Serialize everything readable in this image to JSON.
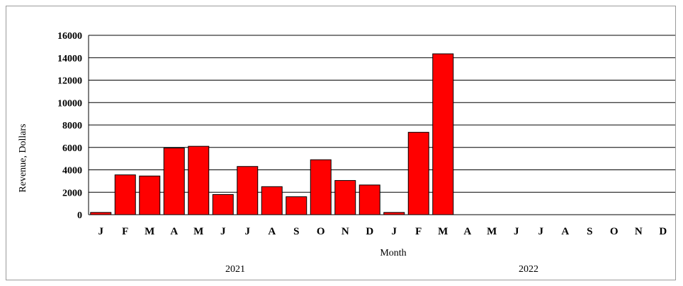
{
  "chart_data": {
    "type": "bar",
    "categories": [
      "J",
      "F",
      "M",
      "A",
      "M",
      "J",
      "J",
      "A",
      "S",
      "O",
      "N",
      "D",
      "J",
      "F",
      "M",
      "A",
      "M",
      "J",
      "J",
      "A",
      "S",
      "O",
      "N",
      "D"
    ],
    "groups": [
      {
        "label": "2021",
        "start": 0,
        "count": 12
      },
      {
        "label": "2022",
        "start": 12,
        "count": 12
      }
    ],
    "values": [
      200,
      3550,
      3450,
      5950,
      6100,
      1800,
      4300,
      2500,
      1600,
      4900,
      3050,
      2650,
      200,
      7350,
      14350,
      null,
      null,
      null,
      null,
      null,
      null,
      null,
      null,
      null
    ],
    "xlabel": "Month",
    "ylabel": "Revenue, Dollars",
    "ylim": [
      0,
      16000
    ],
    "yticks": [
      0,
      2000,
      4000,
      6000,
      8000,
      10000,
      12000,
      14000,
      16000
    ],
    "ytick_labels": [
      "0",
      "2000",
      "4000",
      "6000",
      "8000",
      "10000",
      "12000",
      "14000",
      "16000"
    ],
    "grid": true,
    "colors": {
      "bar": "#ff0000",
      "bar_edge": "#000000",
      "grid": "#000000"
    }
  }
}
